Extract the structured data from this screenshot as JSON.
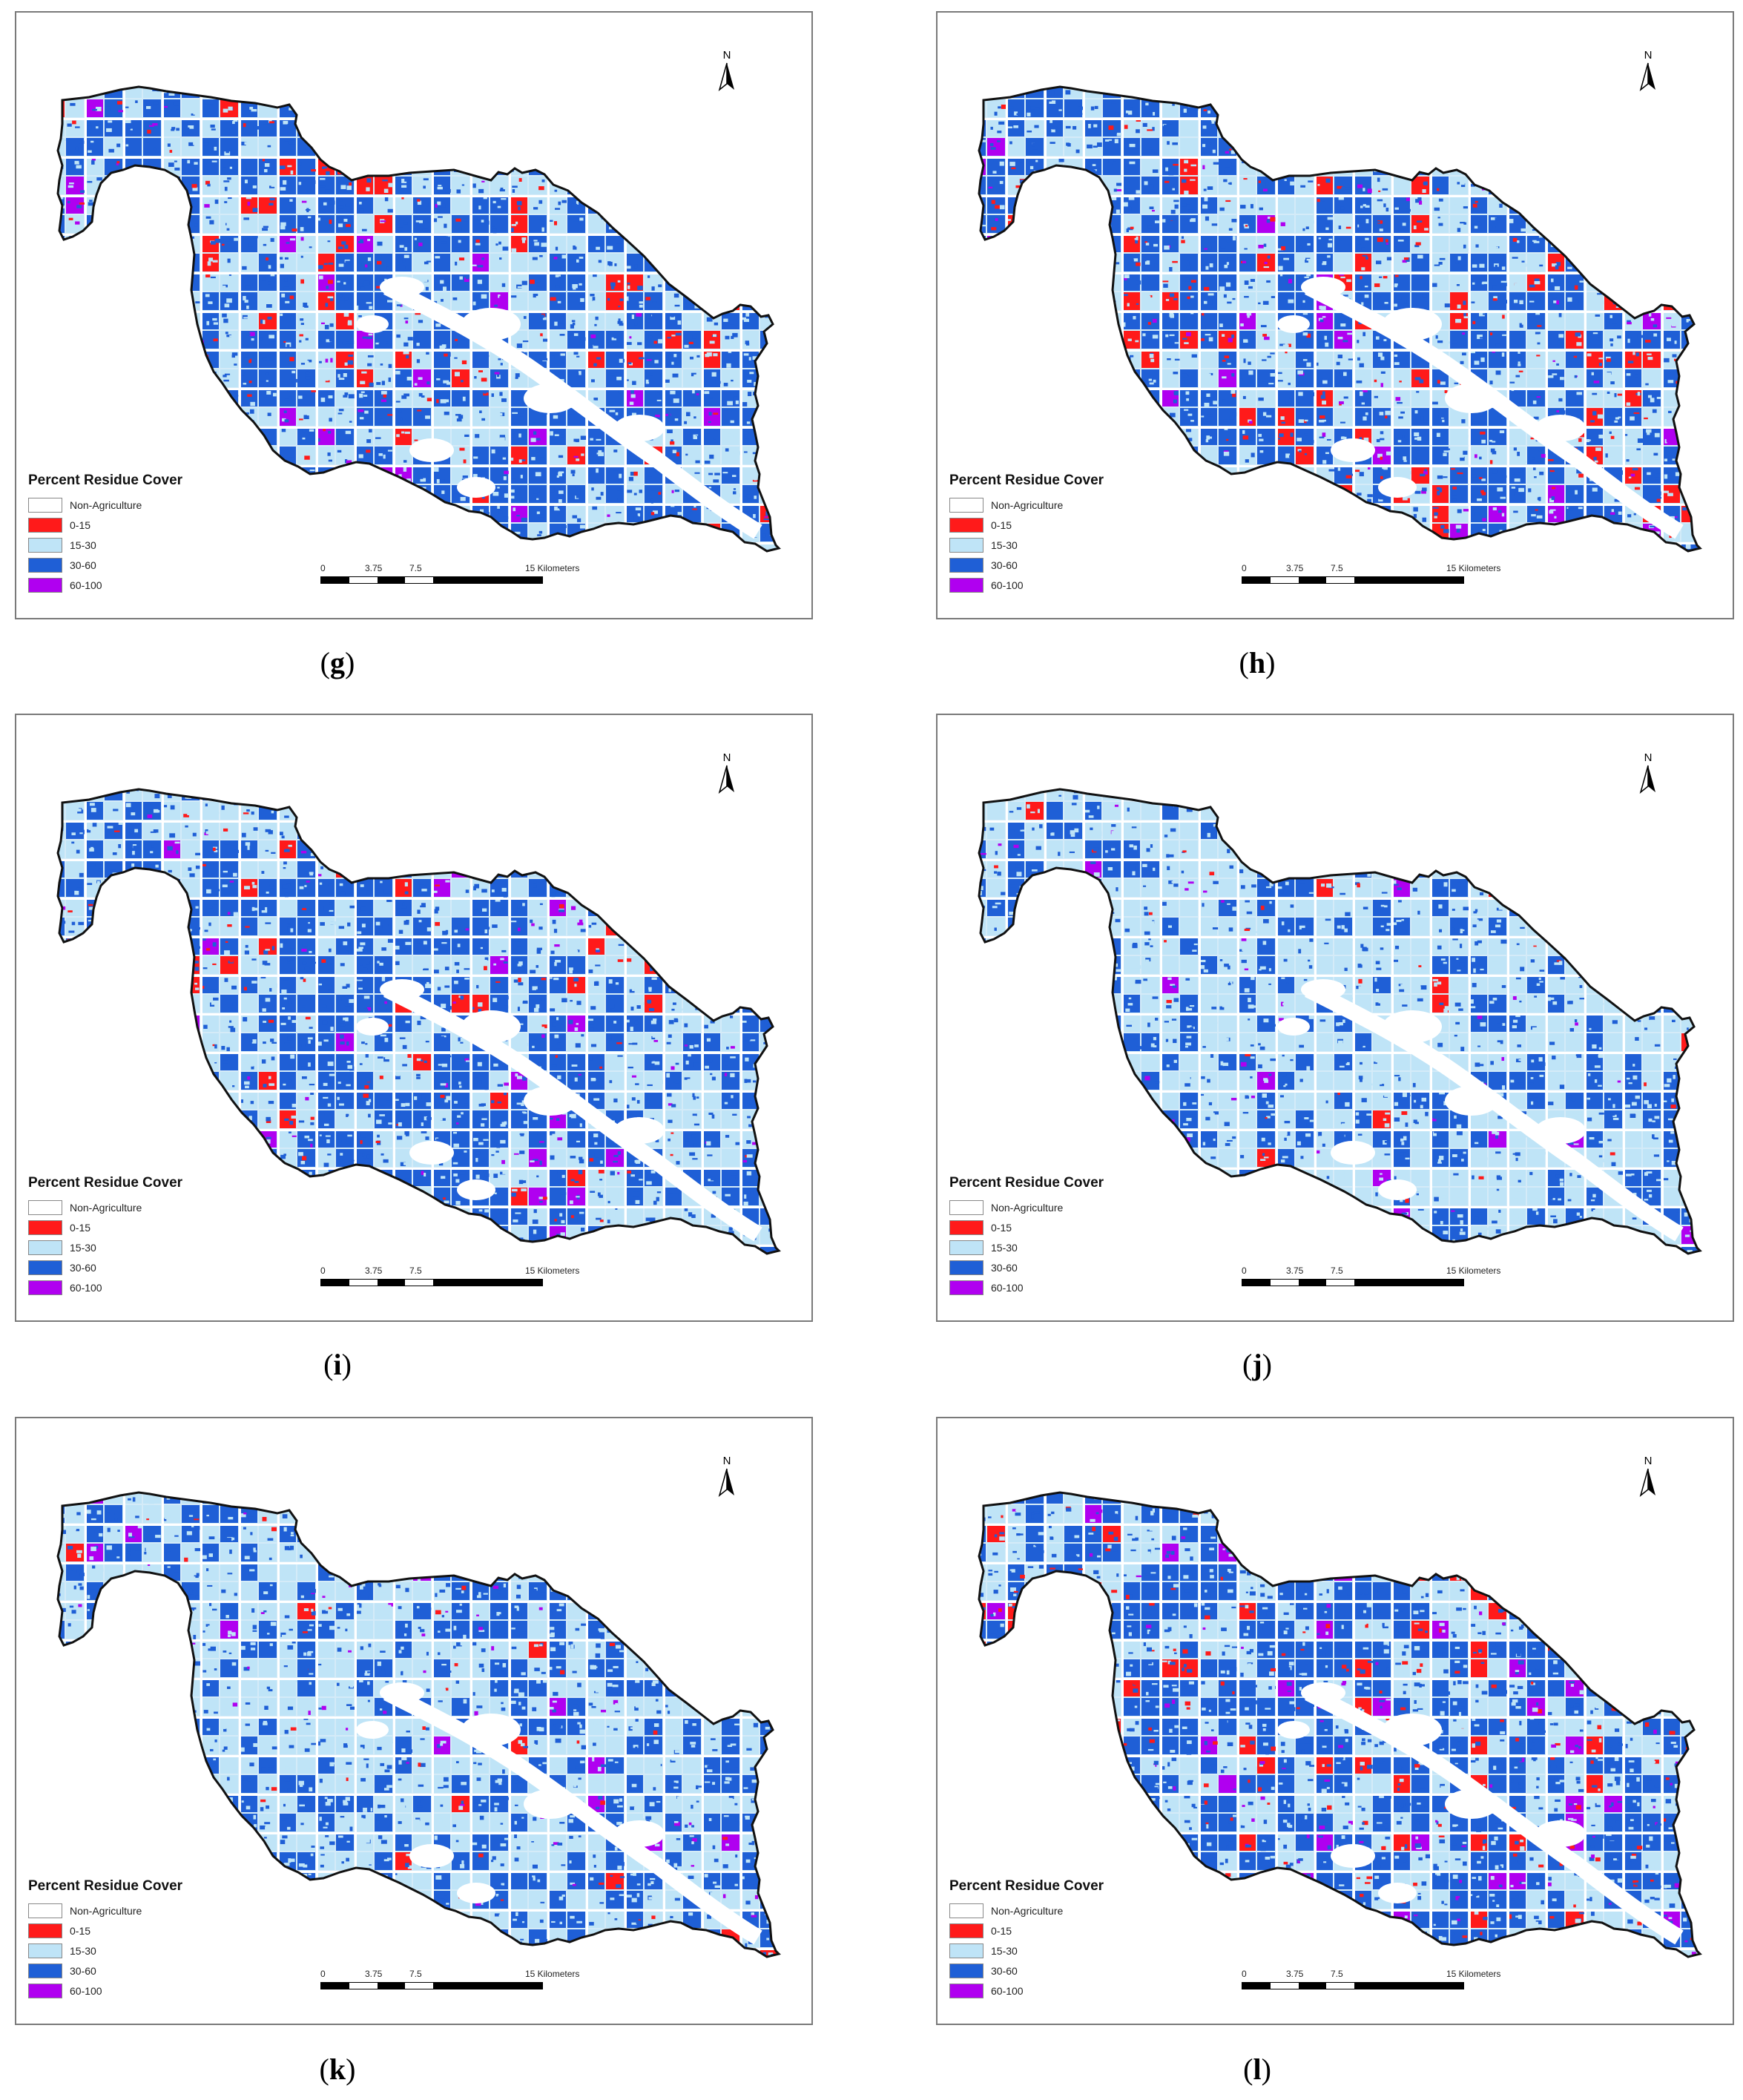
{
  "legend": {
    "title": "Percent Residue Cover",
    "items": [
      {
        "label": "Non-Agriculture",
        "color": "#ffffff"
      },
      {
        "label": "0-15",
        "color": "#ff1a1a"
      },
      {
        "label": "15-30",
        "color": "#bfe4f7"
      },
      {
        "label": "30-60",
        "color": "#1f5fd6"
      },
      {
        "label": "60-100",
        "color": "#b000f0"
      }
    ]
  },
  "scale": {
    "labels": [
      "0",
      "3.75",
      "7.5",
      "15 Kilometers"
    ]
  },
  "north_label": "N",
  "colors": {
    "outline": "#111111",
    "base_fill": "#d4ebf8",
    "frame": "#7a7a7a"
  },
  "panels": [
    {
      "id": "g",
      "caption": "g",
      "mix": {
        "light": 0.38,
        "blue": 0.52,
        "red": 0.07,
        "purple": 0.03
      }
    },
    {
      "id": "h",
      "caption": "h",
      "mix": {
        "light": 0.4,
        "blue": 0.46,
        "red": 0.1,
        "purple": 0.04
      }
    },
    {
      "id": "i",
      "caption": "i",
      "mix": {
        "light": 0.42,
        "blue": 0.51,
        "red": 0.04,
        "purple": 0.03
      }
    },
    {
      "id": "j",
      "caption": "j",
      "mix": {
        "light": 0.66,
        "blue": 0.3,
        "red": 0.02,
        "purple": 0.02
      }
    },
    {
      "id": "k",
      "caption": "k",
      "mix": {
        "light": 0.57,
        "blue": 0.38,
        "red": 0.02,
        "purple": 0.03
      }
    },
    {
      "id": "l",
      "caption": "l",
      "mix": {
        "light": 0.35,
        "blue": 0.54,
        "red": 0.07,
        "purple": 0.04
      }
    }
  ]
}
